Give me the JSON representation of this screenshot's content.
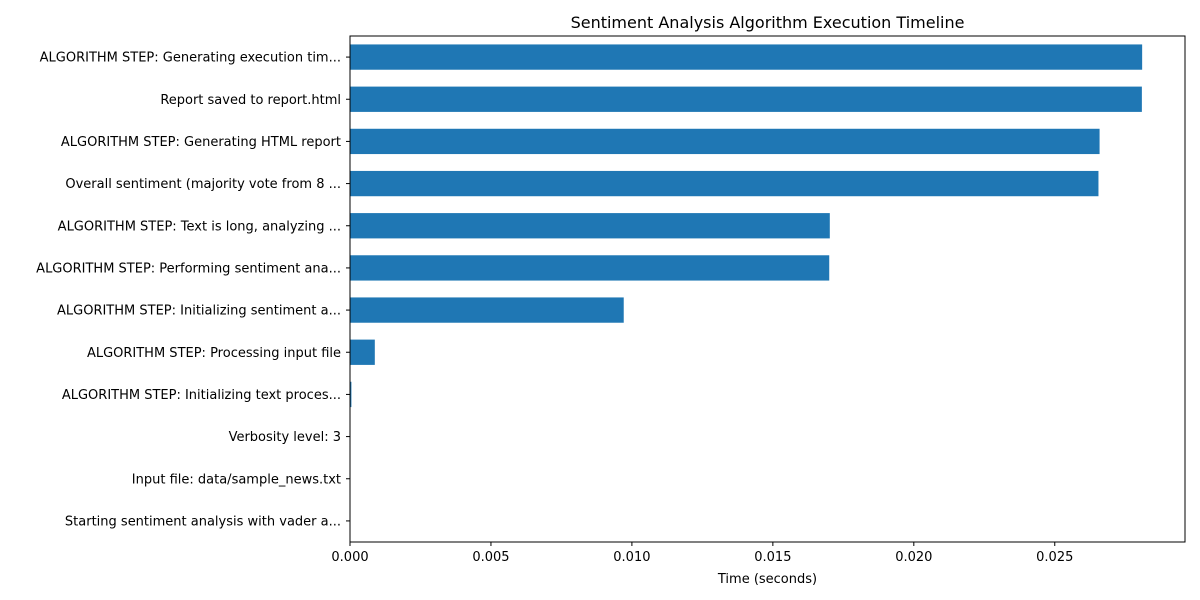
{
  "chart_data": {
    "type": "bar",
    "orientation": "horizontal",
    "title": "Sentiment Analysis Algorithm Execution Timeline",
    "xlabel": "Time (seconds)",
    "ylabel": "",
    "xlim": [
      0,
      0.02962
    ],
    "xticks": [
      0.0,
      0.005,
      0.01,
      0.015,
      0.02,
      0.025
    ],
    "xtick_labels": [
      "0.000",
      "0.005",
      "0.010",
      "0.015",
      "0.020",
      "0.025"
    ],
    "grid": false,
    "bar_color": "#1f77b4",
    "categories": [
      "Starting sentiment analysis with vader a...",
      "Input file: data/sample_news.txt",
      "Verbosity level: 3",
      "ALGORITHM STEP: Initializing text proces...",
      "ALGORITHM STEP: Processing input file",
      "ALGORITHM STEP: Initializing sentiment a...",
      "ALGORITHM STEP: Performing sentiment ana...",
      "ALGORITHM STEP: Text is long, analyzing ...",
      "Overall sentiment (majority vote from 8 ...",
      "ALGORITHM STEP: Generating HTML report",
      "Report saved to report.html",
      "ALGORITHM STEP: Generating execution tim..."
    ],
    "values": [
      0.0,
      0.0,
      0.0,
      5e-05,
      0.00088,
      0.00971,
      0.017,
      0.01702,
      0.02655,
      0.02659,
      0.02809,
      0.0281
    ]
  }
}
